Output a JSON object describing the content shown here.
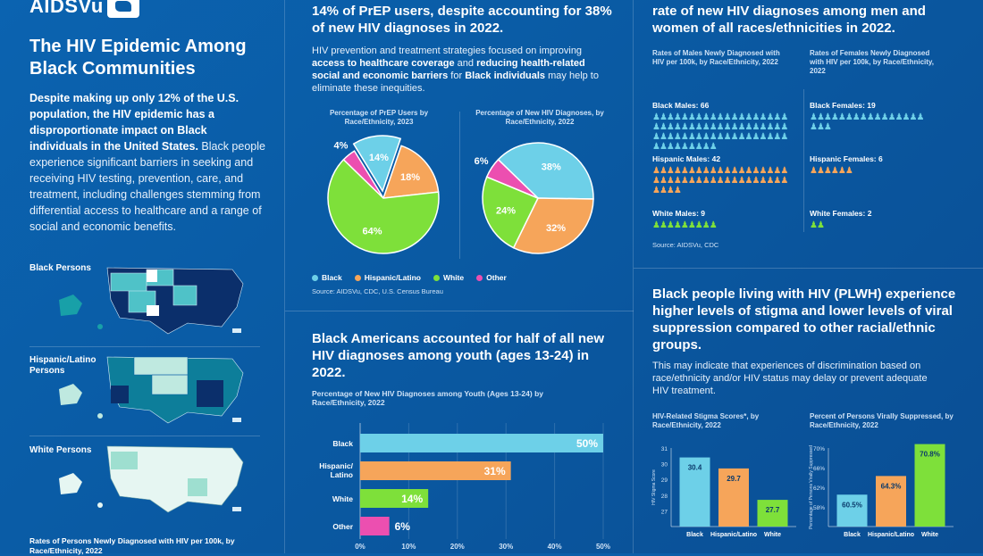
{
  "brand": {
    "name": "AIDSVu"
  },
  "left": {
    "title": "The HIV Epidemic Among Black Communities",
    "intro_bold": "Despite making up only 12% of the U.S. population, the HIV epidemic has a disproportionate impact on Black individuals in the United States.",
    "intro_rest": " Black people experience significant barriers in seeking and receiving HIV testing, prevention, care, and treatment, including challenges stemming from differential access to healthcare and a range of social and economic benefits.",
    "maps": [
      {
        "label": "Black Persons"
      },
      {
        "label": "Hispanic/Latino Persons"
      },
      {
        "label": "White Persons"
      }
    ],
    "footer": "Rates of Persons Newly Diagnosed with HIV per 100k, by Race/Ethnicity, 2022"
  },
  "prep": {
    "heading": "14% of PrEP users, despite accounting for 38% of new HIV diagnoses in 2022.",
    "body_a": "HIV prevention and treatment strategies focused on improving ",
    "body_b": "access to healthcare coverage",
    "body_c": " and ",
    "body_d": "reducing health-related social and economic barriers",
    "body_e": " for ",
    "body_f": "Black individuals",
    "body_g": " may help to eliminate these inequities.",
    "pie1_title": "Percentage of PrEP Users by Race/Ethnicity, 2023",
    "pie2_title": "Percentage of New HIV Diagnoses, by Race/Ethnicity, 2022",
    "legend": [
      "Black",
      "Hispanic/Latino",
      "White",
      "Other"
    ],
    "source": "Source: AIDSVu, CDC, U.S. Census Bureau"
  },
  "youth": {
    "heading": "Black Americans accounted for half of all new HIV diagnoses among youth (ages 13-24) in 2022.",
    "subtitle": "Percentage of New HIV Diagnoses among Youth (Ages 13-24) by Race/Ethnicity, 2022"
  },
  "rates": {
    "heading": "rate of new HIV diagnoses among men and women of all races/ethnicities in 2022.",
    "males_title": "Rates of Males Newly Diagnosed with HIV per 100k, by Race/Ethnicity, 2022",
    "females_title": "Rates of Females Newly Diagnosed with HIV per 100k, by Race/Ethnicity, 2022",
    "males": [
      {
        "label": "Black Males: 66",
        "count": 66
      },
      {
        "label": "Hispanic Males: 42",
        "count": 42
      },
      {
        "label": "White Males: 9",
        "count": 9
      }
    ],
    "females": [
      {
        "label": "Black Females: 19",
        "count": 19
      },
      {
        "label": "Hispanic Females: 6",
        "count": 6
      },
      {
        "label": "White Females: 2",
        "count": 2
      }
    ],
    "source": "Source: AIDSVu, CDC"
  },
  "plwh": {
    "heading": "Black people living with HIV (PLWH) experience higher levels of stigma and lower levels of viral suppression compared to other racial/ethnic groups.",
    "body": "This may indicate that experiences of discrimination based on race/ethnicity and/or HIV status may delay or prevent adequate HIV treatment.",
    "stigma_title": "HIV-Related Stigma Scores*, by Race/Ethnicity, 2022",
    "vs_title": "Percent of Persons Virally Suppressed, by Race/Ethnicity, 2022"
  },
  "colors": {
    "black": "#6dd0e8",
    "hispanic": "#f6a55a",
    "white": "#7ee03a",
    "other": "#ec4fb0"
  },
  "chart_data": [
    {
      "type": "pie",
      "title": "Percentage of PrEP Users by Race/Ethnicity, 2023",
      "categories": [
        "Black",
        "Hispanic/Latino",
        "White",
        "Other"
      ],
      "values": [
        14,
        18,
        64,
        4
      ]
    },
    {
      "type": "pie",
      "title": "Percentage of New HIV Diagnoses, by Race/Ethnicity, 2022",
      "categories": [
        "Black",
        "Hispanic/Latino",
        "White",
        "Other"
      ],
      "values": [
        38,
        32,
        24,
        6
      ]
    },
    {
      "type": "bar",
      "title": "Percentage of New HIV Diagnoses among Youth (Ages 13-24) by Race/Ethnicity, 2022",
      "categories": [
        "Black",
        "Hispanic/ Latino",
        "White",
        "Other"
      ],
      "values": [
        50,
        31,
        14,
        6
      ],
      "xlim": [
        0,
        50
      ],
      "ticks": [
        "0%",
        "10%",
        "20%",
        "30%",
        "40%",
        "50%"
      ]
    },
    {
      "type": "bar",
      "title": "HIV-Related Stigma Scores*, by Race/Ethnicity, 2022",
      "categories": [
        "Black",
        "Hispanic/Latino",
        "White"
      ],
      "values": [
        30.4,
        29.7,
        27.7
      ],
      "ylim": [
        26,
        31
      ],
      "ticks": [
        "31",
        "30",
        "29",
        "28",
        "27"
      ],
      "ylabel": "HIV Stigma Score"
    },
    {
      "type": "bar",
      "title": "Percent of Persons Virally Suppressed, by Race/Ethnicity, 2022",
      "categories": [
        "Black",
        "Hispanic/Latino",
        "White"
      ],
      "values": [
        60.5,
        64.3,
        70.8
      ],
      "ylim": [
        54,
        70
      ],
      "ticks": [
        "70%",
        "66%",
        "62%",
        "58%"
      ],
      "ylabel": "Percentage of Persons Virally Suppressed"
    }
  ]
}
